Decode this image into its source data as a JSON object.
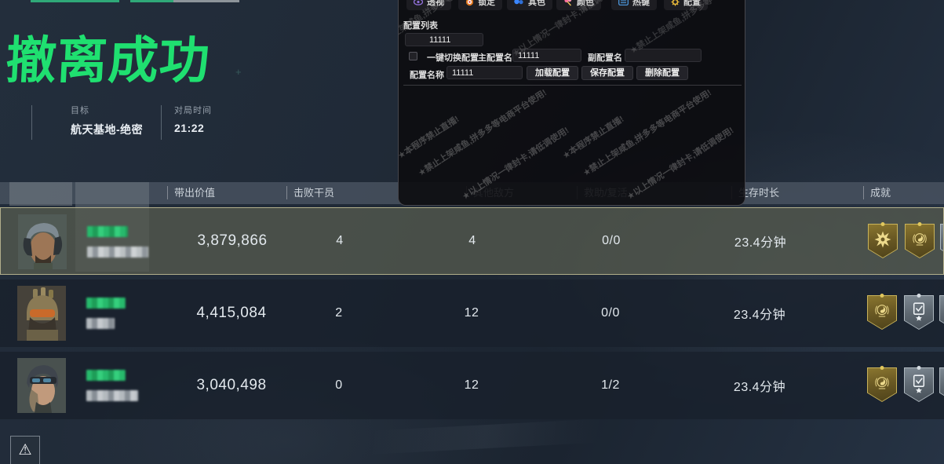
{
  "header": {
    "title": "撤离成功",
    "meta": [
      {
        "label": "目标",
        "value": "航天基地-绝密"
      },
      {
        "label": "对局时间",
        "value": "21:22"
      }
    ]
  },
  "overlay": {
    "tabs": [
      {
        "label": "透视",
        "icon": "eye-icon"
      },
      {
        "label": "锁定",
        "icon": "target-icon"
      },
      {
        "label": "其色",
        "icon": "dots-icon"
      },
      {
        "label": "颜色",
        "icon": "paint-icon"
      },
      {
        "label": "热键",
        "icon": "keyboard-icon"
      },
      {
        "label": "配置",
        "icon": "gear-icon"
      }
    ],
    "config_list_label": "配置列表",
    "selected_config": "11111",
    "quick_switch_label": "一键切换配置",
    "main_config_label": "主配置名",
    "main_config_value": "11111",
    "sub_config_label": "副配置名",
    "sub_config_value": "",
    "config_name_label": "配置名称",
    "config_name_value": "11111",
    "buttons": {
      "load": "加载配置",
      "save": "保存配置",
      "delete": "删除配置"
    },
    "watermarks": [
      "★本程序禁止直播!",
      "★禁止上架咸鱼,拼多多等电商平台使用!",
      "★以上情况一律封卡,请低调使用!"
    ]
  },
  "table": {
    "columns": [
      "带出价值",
      "击败干员",
      "其他敌方",
      "救助/复活",
      "生存时长",
      "成就"
    ],
    "rows": [
      {
        "value": "3,879,866",
        "defeated": "4",
        "other_enemies": "4",
        "rescue": "0/0",
        "survival": "23.4分钟",
        "badges": [
          "starburst-gold",
          "laurel-gold",
          "edge-silver"
        ]
      },
      {
        "value": "4,415,084",
        "defeated": "2",
        "other_enemies": "12",
        "rescue": "0/0",
        "survival": "23.4分钟",
        "badges": [
          "laurel-gold",
          "check-silver",
          "edge-silver"
        ]
      },
      {
        "value": "3,040,498",
        "defeated": "0",
        "other_enemies": "12",
        "rescue": "1/2",
        "survival": "23.4分钟",
        "badges": [
          "laurel-gold",
          "check-silver",
          "edge-silver"
        ]
      }
    ]
  },
  "footer": {
    "warning_icon": "⚠"
  }
}
